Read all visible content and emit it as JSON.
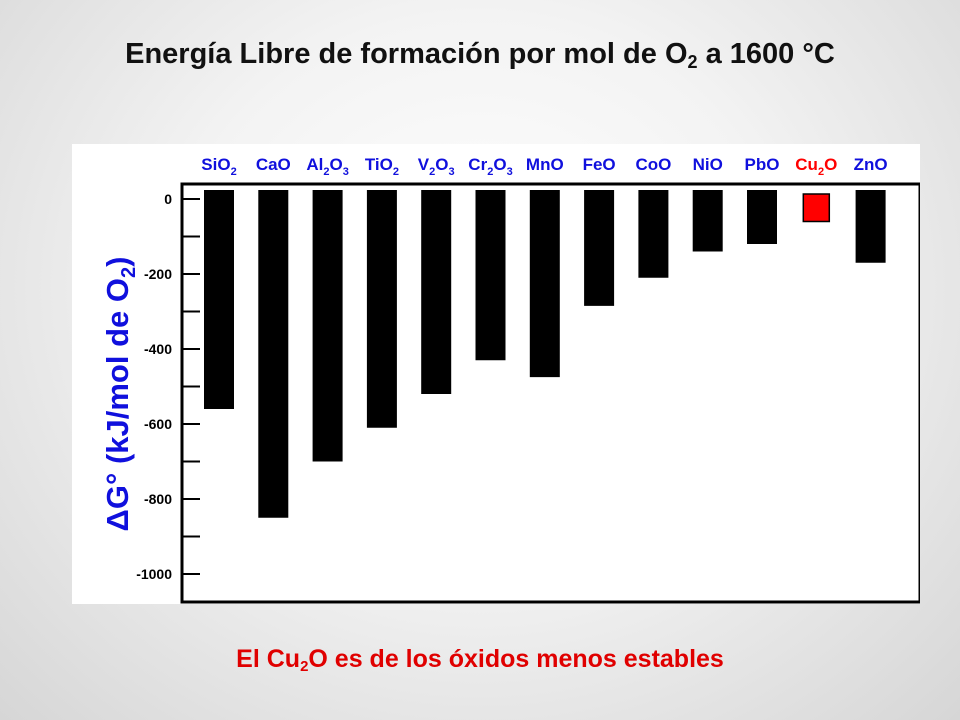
{
  "slide": {
    "title_prefix": "Energía Libre de formación por mol de O",
    "title_sub": "2",
    "title_suffix": " a 1600 °C",
    "caption_prefix": "El Cu",
    "caption_sub": "2",
    "caption_suffix": "O es de los óxidos menos estables"
  },
  "chart_data": {
    "type": "bar",
    "categories": [
      "SiO2",
      "CaO",
      "Al2O3",
      "TiO2",
      "V2O3",
      "Cr2O3",
      "MnO",
      "FeO",
      "CoO",
      "NiO",
      "PbO",
      "Cu2O",
      "ZnO"
    ],
    "category_labels": [
      [
        {
          "t": "SiO"
        },
        {
          "t": "2",
          "s": 1
        }
      ],
      [
        {
          "t": "CaO"
        }
      ],
      [
        {
          "t": "Al"
        },
        {
          "t": "2",
          "s": 1
        },
        {
          "t": "O"
        },
        {
          "t": "3",
          "s": 1
        }
      ],
      [
        {
          "t": "TiO"
        },
        {
          "t": "2",
          "s": 1
        }
      ],
      [
        {
          "t": "V"
        },
        {
          "t": "2",
          "s": 1
        },
        {
          "t": "O"
        },
        {
          "t": "3",
          "s": 1
        }
      ],
      [
        {
          "t": "Cr"
        },
        {
          "t": "2",
          "s": 1
        },
        {
          "t": "O"
        },
        {
          "t": "3",
          "s": 1
        }
      ],
      [
        {
          "t": "MnO"
        }
      ],
      [
        {
          "t": "FeO"
        }
      ],
      [
        {
          "t": "CoO"
        }
      ],
      [
        {
          "t": "NiO"
        }
      ],
      [
        {
          "t": "PbO"
        }
      ],
      [
        {
          "t": "Cu"
        },
        {
          "t": "2",
          "s": 1
        },
        {
          "t": "O"
        }
      ],
      [
        {
          "t": "ZnO"
        }
      ]
    ],
    "values": [
      -560,
      -850,
      -700,
      -610,
      -520,
      -430,
      -475,
      -285,
      -210,
      -140,
      -120,
      -60,
      -170
    ],
    "highlight_category": "Cu2O",
    "ylabel_parts": [
      {
        "t": "ΔG° (kJ/mol de O"
      },
      {
        "t": "2",
        "s": 1
      },
      {
        "t": ")"
      }
    ],
    "ylim": [
      -1050,
      20
    ],
    "yticks": [
      0,
      -200,
      -400,
      -600,
      -800,
      -1000
    ],
    "title": "",
    "xlabel": "",
    "grid": false,
    "colors": {
      "bar": "#000000",
      "highlight": "#ff0000",
      "label": "#1010dd",
      "highlight_label": "#ff0000",
      "ylabel": "#1010dd"
    }
  }
}
